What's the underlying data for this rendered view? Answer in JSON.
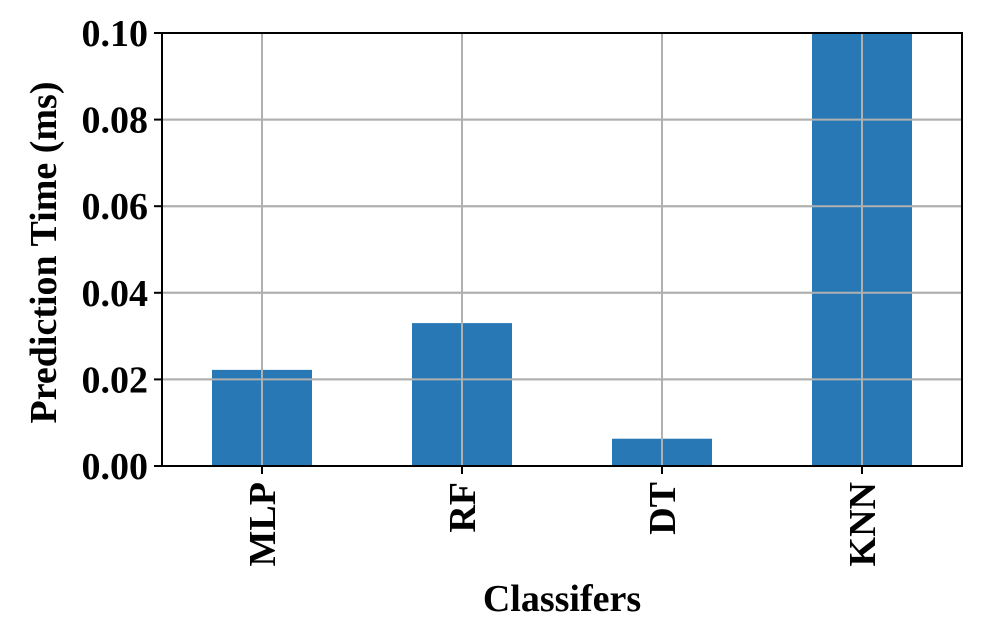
{
  "chart_data": {
    "type": "bar",
    "categories": [
      "MLP",
      "RF",
      "DT",
      "KNN"
    ],
    "values": [
      0.0222,
      0.033,
      0.0063,
      0.1
    ],
    "ylim": [
      0,
      0.1
    ],
    "yticks": [
      "0.00",
      "0.02",
      "0.04",
      "0.06",
      "0.08",
      "0.10"
    ],
    "ytick_values": [
      0,
      0.02,
      0.04,
      0.06,
      0.08,
      0.1
    ],
    "xlabel": "Classifers",
    "ylabel": "Prediction Time (ms)",
    "grid": true,
    "bar_color": "#2878b5",
    "grid_color": "#b0b0b0"
  }
}
